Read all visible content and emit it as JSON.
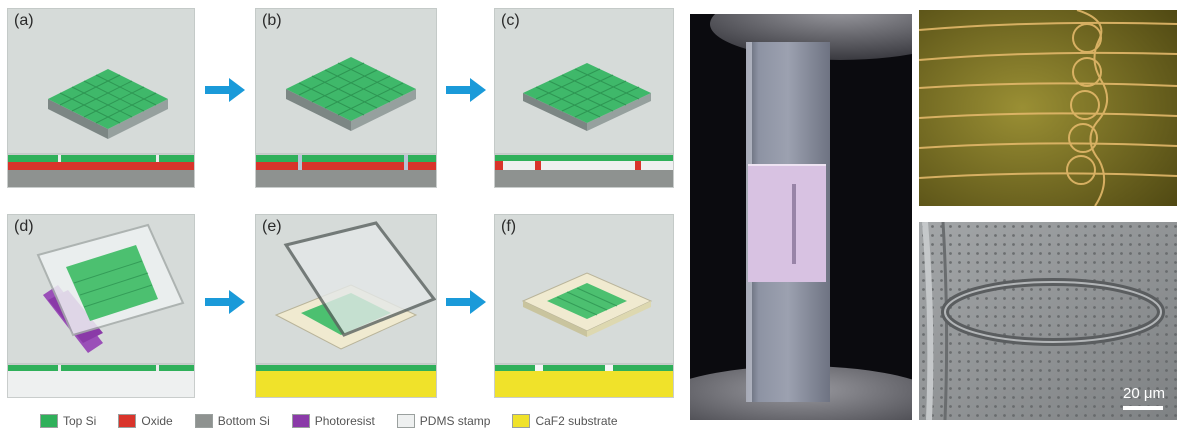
{
  "panels": {
    "a": "(a)",
    "b": "(b)",
    "c": "(c)",
    "d": "(d)",
    "e": "(e)",
    "f": "(f)"
  },
  "legend": [
    {
      "label": "Top Si",
      "color": "#2fb05a"
    },
    {
      "label": "Oxide",
      "color": "#d9342b"
    },
    {
      "label": "Bottom Si",
      "color": "#8e9290"
    },
    {
      "label": "Photoresist",
      "color": "#8a3aa8"
    },
    {
      "label": "PDMS stamp",
      "color": "#eef0f0"
    },
    {
      "label": "CaF2 substrate",
      "color": "#f0e22a"
    }
  ],
  "sem": {
    "scale_label": "20 μm"
  },
  "colors": {
    "arrow": "#1a9ad9",
    "top_si": "#2fb05a",
    "oxide": "#d9342b",
    "bottom_si": "#8e9290",
    "caf2": "#f0e22a",
    "pdms": "#eef0f0",
    "photoresist": "#8a3aa8"
  }
}
